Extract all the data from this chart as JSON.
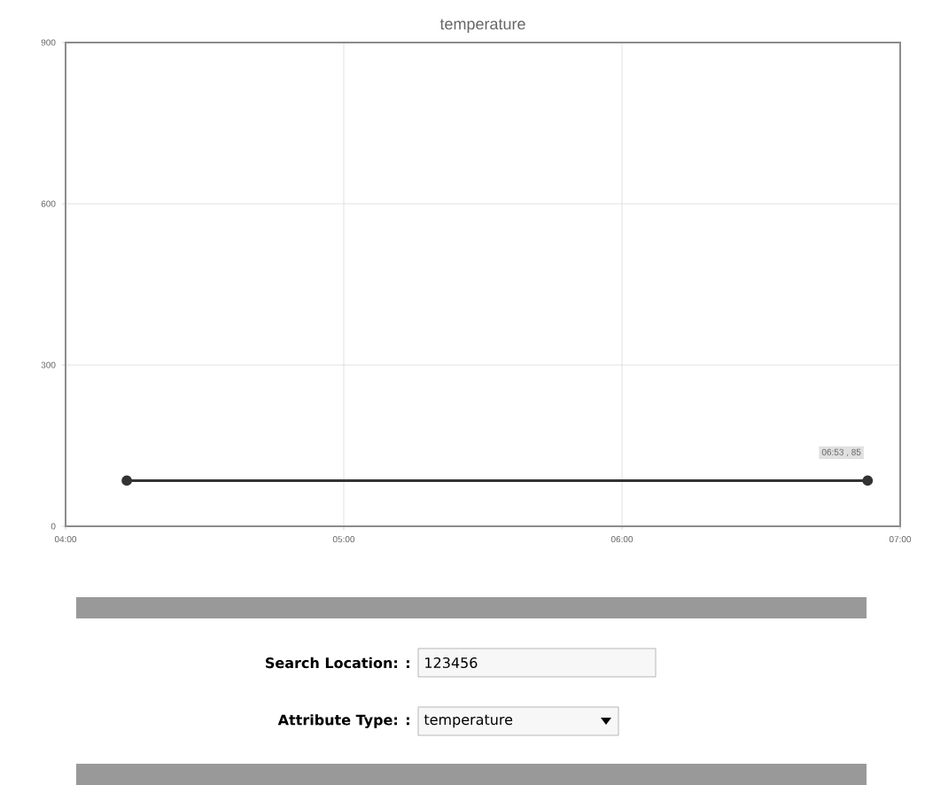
{
  "chart_data": {
    "type": "line",
    "title": "temperature",
    "x": [
      4.22,
      6.883
    ],
    "series": [
      {
        "color": "#333333",
        "values": [
          85,
          85
        ]
      }
    ],
    "xlim": [
      4,
      7
    ],
    "ylim": [
      0,
      900
    ],
    "xticks": [
      {
        "value": 4,
        "label": "04:00"
      },
      {
        "value": 5,
        "label": "05:00"
      },
      {
        "value": 6,
        "label": "06:00"
      },
      {
        "value": 7,
        "label": "07:00"
      }
    ],
    "yticks": [
      0,
      300,
      600,
      900
    ],
    "grid": true,
    "marker": "circle",
    "line_style": "solid",
    "annotations": [
      {
        "text": "06:53 , 85",
        "x": 6.883,
        "y": 85
      },
      "Search Location: :",
      "123456",
      "Attribute Type: :",
      "temperature"
    ]
  }
}
